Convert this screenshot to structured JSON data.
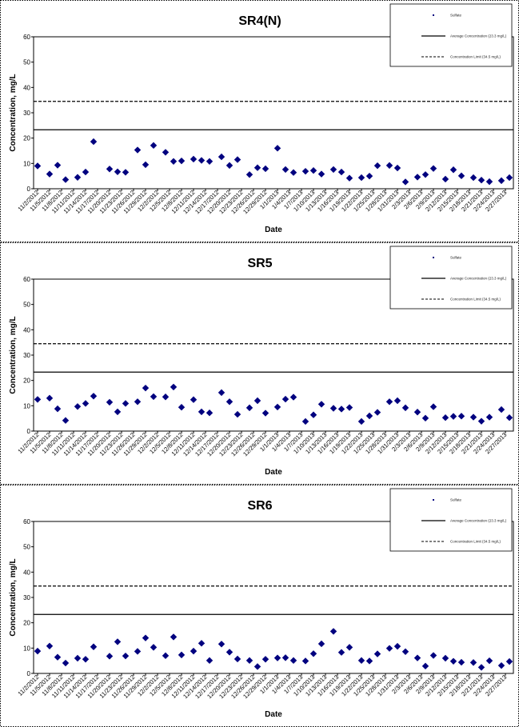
{
  "colors": {
    "marker": "#00007f",
    "line": "#000000",
    "frame": "#000000"
  },
  "chart_data": [
    {
      "type": "scatter",
      "title": "SR4(N)",
      "xlabel": "Date",
      "ylabel": "Concentration, mg/L",
      "ylim": [
        0,
        60
      ],
      "yticks": [
        "0",
        "10",
        "20",
        "30",
        "40",
        "50",
        "60"
      ],
      "x_tick_labels": [
        "11/2/2012",
        "11/5/2012",
        "11/8/2012",
        "11/11/2012",
        "11/14/2012",
        "11/17/2012",
        "11/20/2012",
        "11/23/2012",
        "11/26/2012",
        "11/29/2012",
        "12/2/2012",
        "12/5/2012",
        "12/8/2012",
        "12/11/2012",
        "12/14/2012",
        "12/17/2012",
        "12/20/2012",
        "12/23/2012",
        "12/26/2012",
        "12/29/2012",
        "1/1/2013",
        "1/4/2013",
        "1/7/2013",
        "1/10/2013",
        "1/13/2013",
        "1/16/2013",
        "1/19/2013",
        "1/22/2013",
        "1/25/2013",
        "1/28/2013",
        "1/31/2013",
        "2/3/2013",
        "2/6/2013",
        "2/9/2013",
        "2/12/2013",
        "2/15/2013",
        "2/18/2013",
        "2/21/2013",
        "2/24/2013",
        "2/27/2013"
      ],
      "legend": {
        "placement": "top-right",
        "entries": [
          "Sulfate",
          "Average Concentration (23.3 mg/L)",
          "Concentration Limit (34.5 mg/L)"
        ]
      },
      "reference_lines": [
        {
          "value": 23.3,
          "style": "solid"
        },
        {
          "value": 34.5,
          "style": "dashed"
        }
      ],
      "series": [
        {
          "x": [
            "11/2/2012",
            "11/5/2012",
            "11/7/2012",
            "11/9/2012",
            "11/12/2012",
            "11/14/2012",
            "11/16/2012",
            "11/20/2012",
            "11/22/2012",
            "11/24/2012",
            "11/27/2012",
            "11/29/2012",
            "12/1/2012",
            "12/4/2012",
            "12/6/2012",
            "12/8/2012",
            "12/11/2012",
            "12/13/2012",
            "12/15/2012",
            "12/18/2012",
            "12/20/2012",
            "12/22/2012",
            "12/25/2012",
            "12/27/2012",
            "12/29/2012",
            "1/1/2013",
            "1/3/2013",
            "1/5/2013",
            "1/8/2013",
            "1/10/2013",
            "1/12/2013",
            "1/15/2013",
            "1/17/2013",
            "1/19/2013",
            "1/22/2013",
            "1/24/2013",
            "1/26/2013",
            "1/29/2013",
            "1/31/2013",
            "2/2/2013",
            "2/5/2013",
            "2/7/2013",
            "2/9/2013",
            "2/12/2013",
            "2/14/2013",
            "2/16/2013",
            "2/19/2013",
            "2/21/2013",
            "2/23/2013",
            "2/26/2013",
            "2/28/2013"
          ],
          "y": [
            9.0,
            5.8,
            9.3,
            3.6,
            4.5,
            6.6,
            18.6,
            7.8,
            6.7,
            6.5,
            15.3,
            9.5,
            17.1,
            14.4,
            10.8,
            11.0,
            11.7,
            11.2,
            10.8,
            12.6,
            9.2,
            11.5,
            5.6,
            8.3,
            7.9,
            16.0,
            7.6,
            6.4,
            6.9,
            7.2,
            5.8,
            7.6,
            6.6,
            4.2,
            4.4,
            5.0,
            9.1,
            9.2,
            8.2,
            2.7,
            4.6,
            5.6,
            8.0,
            3.8,
            7.5,
            5.1,
            4.4,
            3.4,
            2.8,
            3.2,
            4.4
          ]
        }
      ]
    },
    {
      "type": "scatter",
      "title": "SR5",
      "xlabel": "Date",
      "ylabel": "Concentration, mg/L",
      "ylim": [
        0,
        60
      ],
      "yticks": [
        "0",
        "10",
        "20",
        "30",
        "40",
        "50",
        "60"
      ],
      "x_tick_labels": [
        "11/2/2012",
        "11/5/2012",
        "11/8/2012",
        "11/11/2012",
        "11/14/2012",
        "11/17/2012",
        "11/20/2012",
        "11/23/2012",
        "11/26/2012",
        "11/29/2012",
        "12/2/2012",
        "12/5/2012",
        "12/8/2012",
        "12/11/2012",
        "12/14/2012",
        "12/17/2012",
        "12/20/2012",
        "12/23/2012",
        "12/26/2012",
        "12/29/2012",
        "1/1/2013",
        "1/4/2013",
        "1/7/2013",
        "1/10/2013",
        "1/13/2013",
        "1/16/2013",
        "1/19/2013",
        "1/22/2013",
        "1/25/2013",
        "1/28/2013",
        "1/31/2013",
        "2/3/2013",
        "2/6/2013",
        "2/9/2013",
        "2/12/2013",
        "2/15/2013",
        "2/18/2013",
        "2/21/2013",
        "2/24/2013",
        "2/27/2013"
      ],
      "legend": {
        "placement": "top-right",
        "entries": [
          "Sulfate",
          "Average Concentration (23.3 mg/L)",
          "Concentration Limit (34.5 mg/L)"
        ]
      },
      "reference_lines": [
        {
          "value": 23.3,
          "style": "solid"
        },
        {
          "value": 34.5,
          "style": "dashed"
        }
      ],
      "series": [
        {
          "x": [
            "11/2/2012",
            "11/5/2012",
            "11/7/2012",
            "11/9/2012",
            "11/12/2012",
            "11/14/2012",
            "11/16/2012",
            "11/20/2012",
            "11/22/2012",
            "11/24/2012",
            "11/27/2012",
            "11/29/2012",
            "12/1/2012",
            "12/4/2012",
            "12/6/2012",
            "12/8/2012",
            "12/11/2012",
            "12/13/2012",
            "12/15/2012",
            "12/18/2012",
            "12/20/2012",
            "12/22/2012",
            "12/25/2012",
            "12/27/2012",
            "12/29/2012",
            "1/1/2013",
            "1/3/2013",
            "1/5/2013",
            "1/8/2013",
            "1/10/2013",
            "1/12/2013",
            "1/15/2013",
            "1/17/2013",
            "1/19/2013",
            "1/22/2013",
            "1/24/2013",
            "1/26/2013",
            "1/29/2013",
            "1/31/2013",
            "2/2/2013",
            "2/5/2013",
            "2/7/2013",
            "2/9/2013",
            "2/12/2013",
            "2/14/2013",
            "2/16/2013",
            "2/19/2013",
            "2/21/2013",
            "2/23/2013",
            "2/26/2013",
            "2/28/2013"
          ],
          "y": [
            12.5,
            13.0,
            8.8,
            4.2,
            9.7,
            10.9,
            13.8,
            11.4,
            7.6,
            10.9,
            11.6,
            17.0,
            13.6,
            13.5,
            17.4,
            9.4,
            12.4,
            7.6,
            7.2,
            15.2,
            11.6,
            6.6,
            9.2,
            12.0,
            7.1,
            9.5,
            12.6,
            13.4,
            3.8,
            6.4,
            10.6,
            9.0,
            8.7,
            9.3,
            3.8,
            6.0,
            7.4,
            11.6,
            12.0,
            9.2,
            7.5,
            5.1,
            9.6,
            5.3,
            5.8,
            5.9,
            5.5,
            3.9,
            5.5,
            8.5,
            5.3
          ]
        }
      ]
    },
    {
      "type": "scatter",
      "title": "SR6",
      "xlabel": "Date",
      "ylabel": "Concentration, mg/L",
      "ylim": [
        0,
        60
      ],
      "yticks": [
        "0",
        "10",
        "20",
        "30",
        "40",
        "50",
        "60"
      ],
      "x_tick_labels": [
        "11/2/2012",
        "11/5/2012",
        "11/8/2012",
        "11/11/2012",
        "11/14/2012",
        "11/17/2012",
        "11/20/2012",
        "11/23/2012",
        "11/26/2012",
        "11/29/2012",
        "12/2/2012",
        "12/5/2012",
        "12/8/2012",
        "12/11/2012",
        "12/14/2012",
        "12/17/2012",
        "12/20/2012",
        "12/23/2012",
        "12/26/2012",
        "12/29/2012",
        "1/1/2013",
        "1/4/2013",
        "1/7/2013",
        "1/10/2013",
        "1/13/2013",
        "1/16/2013",
        "1/19/2013",
        "1/22/2013",
        "1/25/2013",
        "1/28/2013",
        "1/31/2013",
        "2/3/2013",
        "2/6/2013",
        "2/9/2013",
        "2/12/2013",
        "2/15/2013",
        "2/18/2013",
        "2/21/2013",
        "2/24/2013",
        "2/27/2013"
      ],
      "legend": {
        "placement": "top-right",
        "entries": [
          "Sulfate",
          "Average Concentration (23.3 mg/L)",
          "Concentration Limit (34.5 mg/L)"
        ]
      },
      "reference_lines": [
        {
          "value": 23.3,
          "style": "solid"
        },
        {
          "value": 34.5,
          "style": "dashed"
        }
      ],
      "series": [
        {
          "x": [
            "11/2/2012",
            "11/5/2012",
            "11/7/2012",
            "11/9/2012",
            "11/12/2012",
            "11/14/2012",
            "11/16/2012",
            "11/20/2012",
            "11/22/2012",
            "11/24/2012",
            "11/27/2012",
            "11/29/2012",
            "12/1/2012",
            "12/4/2012",
            "12/6/2012",
            "12/8/2012",
            "12/11/2012",
            "12/13/2012",
            "12/15/2012",
            "12/18/2012",
            "12/20/2012",
            "12/22/2012",
            "12/25/2012",
            "12/27/2012",
            "12/29/2012",
            "1/1/2013",
            "1/3/2013",
            "1/5/2013",
            "1/8/2013",
            "1/10/2013",
            "1/12/2013",
            "1/15/2013",
            "1/17/2013",
            "1/19/2013",
            "1/22/2013",
            "1/24/2013",
            "1/26/2013",
            "1/29/2013",
            "1/31/2013",
            "2/2/2013",
            "2/5/2013",
            "2/7/2013",
            "2/9/2013",
            "2/12/2013",
            "2/14/2013",
            "2/16/2013",
            "2/19/2013",
            "2/21/2013",
            "2/23/2013",
            "2/26/2013",
            "2/28/2013"
          ],
          "y": [
            8.8,
            10.8,
            6.4,
            4.1,
            6.0,
            5.6,
            10.5,
            6.8,
            12.5,
            6.9,
            8.7,
            14.0,
            10.3,
            7.0,
            14.4,
            7.3,
            8.8,
            11.9,
            5.1,
            11.6,
            8.4,
            5.7,
            5.1,
            2.7,
            5.6,
            6.1,
            6.2,
            5.1,
            4.9,
            7.8,
            11.7,
            16.6,
            8.3,
            10.3,
            5.1,
            4.9,
            7.7,
            9.9,
            10.7,
            8.6,
            6.1,
            2.9,
            7.1,
            6.0,
            4.8,
            4.4,
            4.3,
            2.4,
            5.0,
            3.1,
            4.7
          ]
        }
      ]
    }
  ]
}
